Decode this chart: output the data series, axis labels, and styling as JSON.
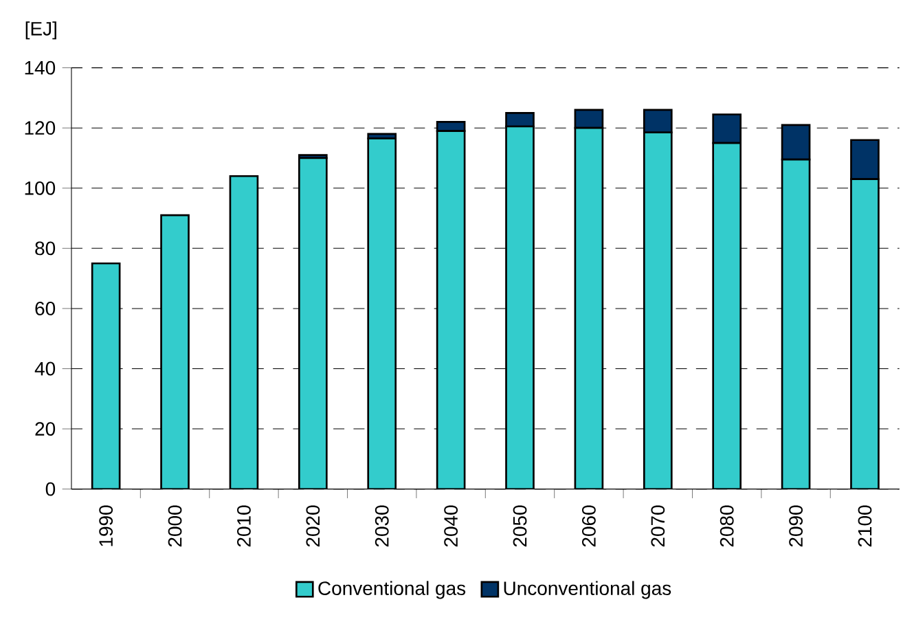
{
  "chart_data": {
    "type": "bar",
    "stacked": true,
    "ylabel": "[EJ]",
    "categories": [
      "1990",
      "2000",
      "2010",
      "2020",
      "2030",
      "2040",
      "2050",
      "2060",
      "2070",
      "2080",
      "2090",
      "2100"
    ],
    "series": [
      {
        "name": "Conventional gas",
        "color": "#33cccc",
        "values": [
          75,
          91,
          104,
          110,
          116.5,
          119,
          120.5,
          120,
          118.5,
          115,
          109.5,
          103
        ]
      },
      {
        "name": "Unconventional gas",
        "color": "#003366",
        "values": [
          0,
          0,
          0,
          1,
          1.5,
          3,
          4.5,
          6,
          7.5,
          9.5,
          11.5,
          13
        ]
      }
    ],
    "ylim": [
      0,
      140
    ],
    "yticks": [
      0,
      20,
      40,
      60,
      80,
      100,
      120,
      140
    ],
    "grid": "y",
    "legend": "bottom"
  }
}
